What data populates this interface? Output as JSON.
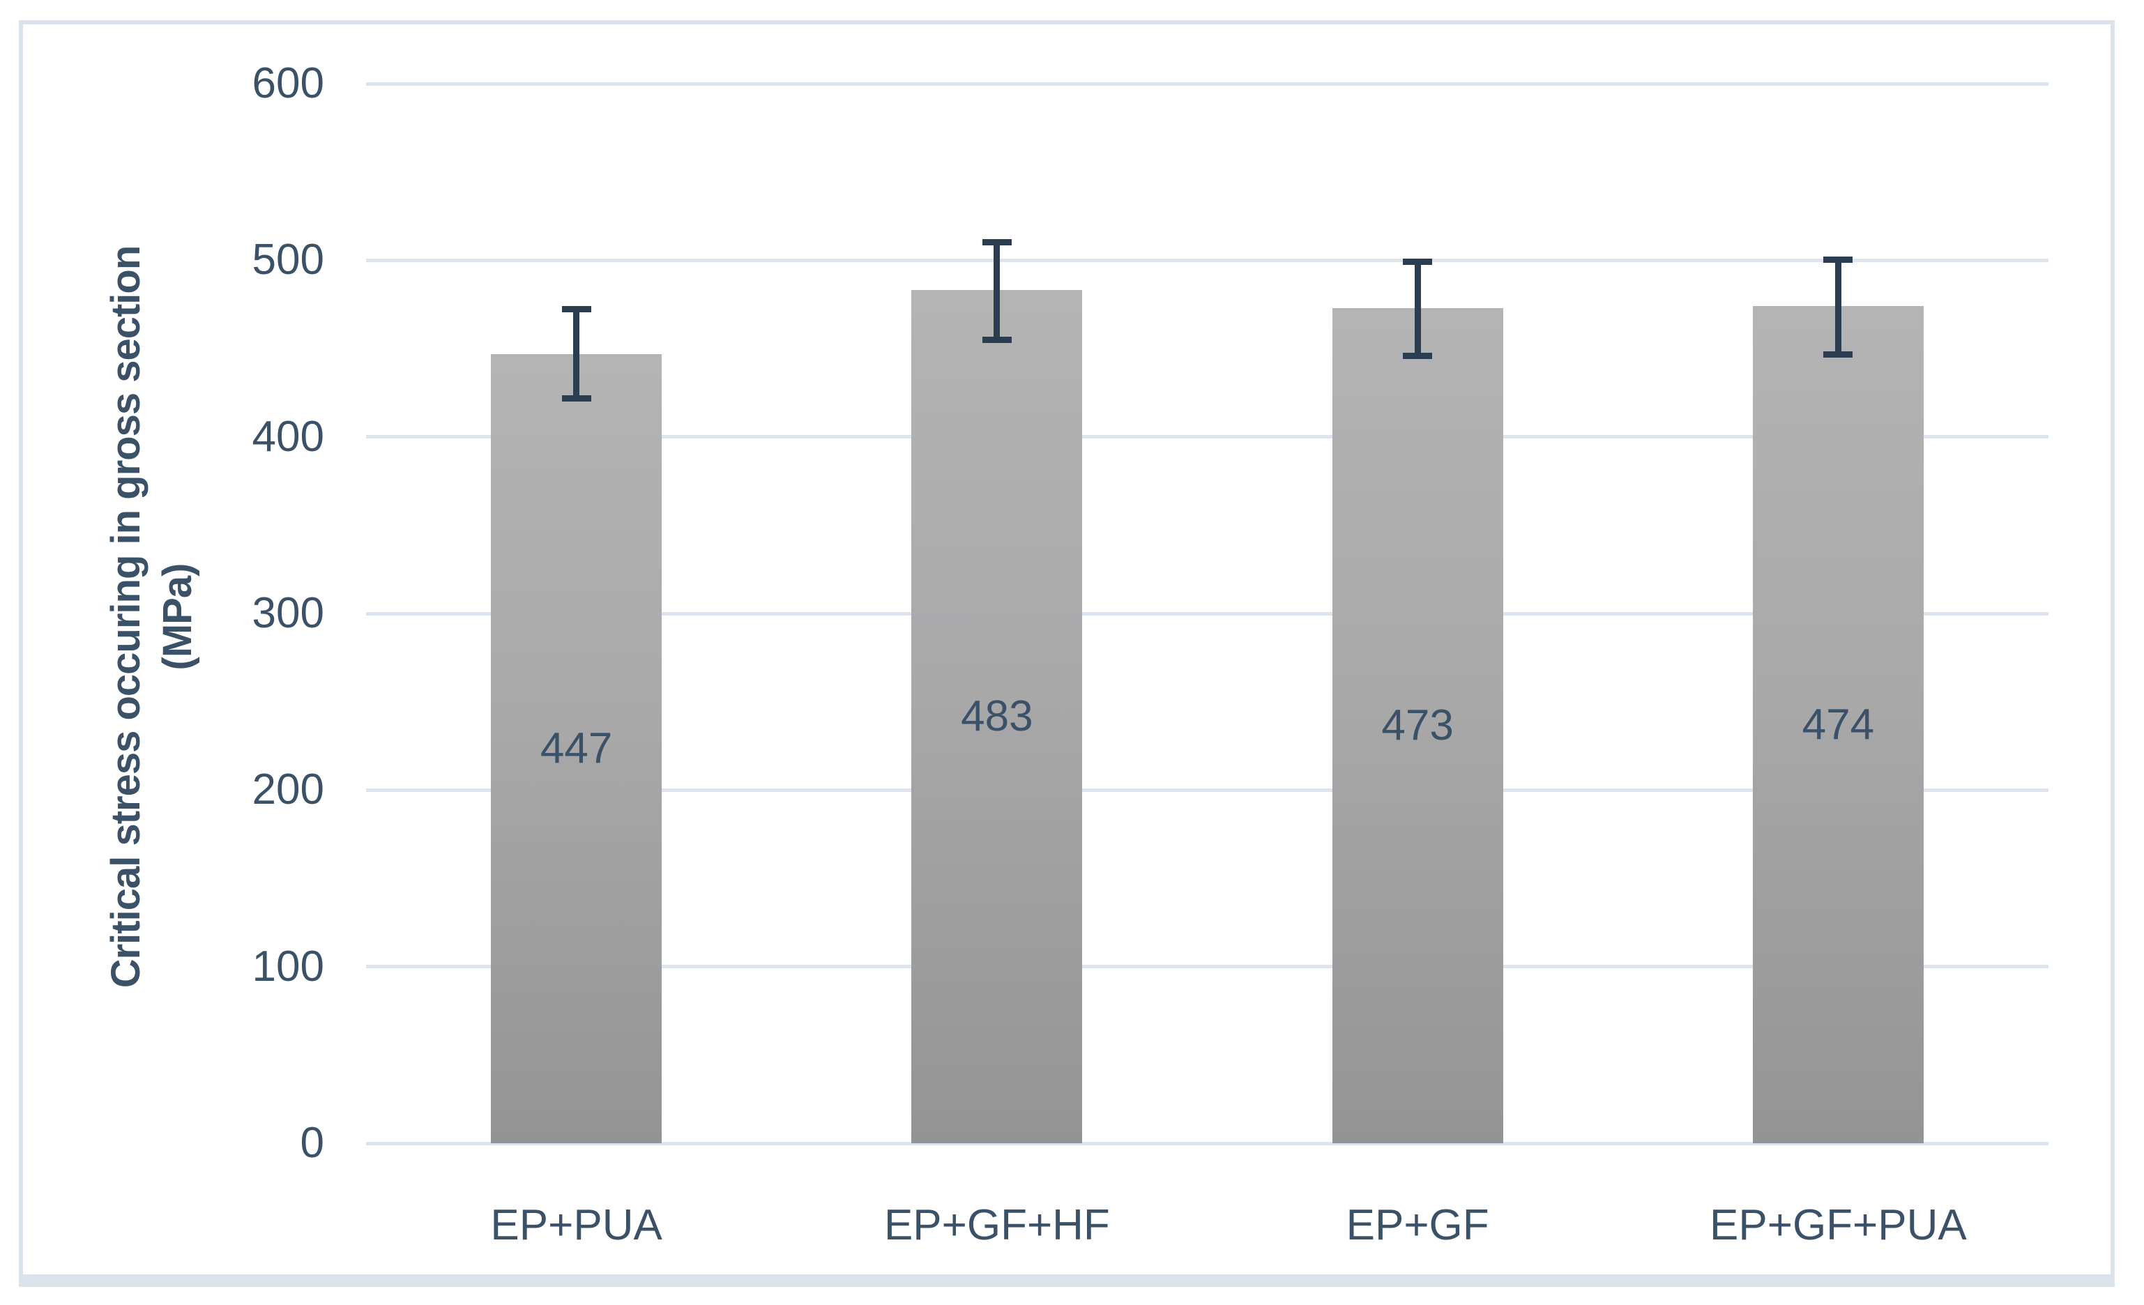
{
  "chart_data": {
    "type": "bar",
    "title": "",
    "categories": [
      "EP+PUA",
      "EP+GF+HF",
      "EP+GF",
      "EP+GF+PUA"
    ],
    "values": [
      447,
      483,
      473,
      474
    ],
    "error_bars": [
      {
        "low": 420,
        "high": 474
      },
      {
        "low": 453,
        "high": 512
      },
      {
        "low": 444,
        "high": 501
      },
      {
        "low": 445,
        "high": 502
      }
    ],
    "ylabel": "Critical stress occuring in gross section (MPa)",
    "ylabel_line1": "Critical stress occuring in gross section",
    "ylabel_line2": "(MPa)",
    "xlabel": "",
    "yticks": [
      0,
      100,
      200,
      300,
      400,
      500,
      600
    ],
    "ylim": [
      0,
      600
    ],
    "grid": true,
    "legend_position": "none",
    "data_labels_position": "center",
    "colors": {
      "bar_gradient_top": "#b4b4b5",
      "bar_gradient_bottom": "#949495",
      "error_bar": "#2b3d51",
      "gridline": "#dee4ee",
      "frame_border": "#dce3ec",
      "text": "#3a5168"
    }
  }
}
